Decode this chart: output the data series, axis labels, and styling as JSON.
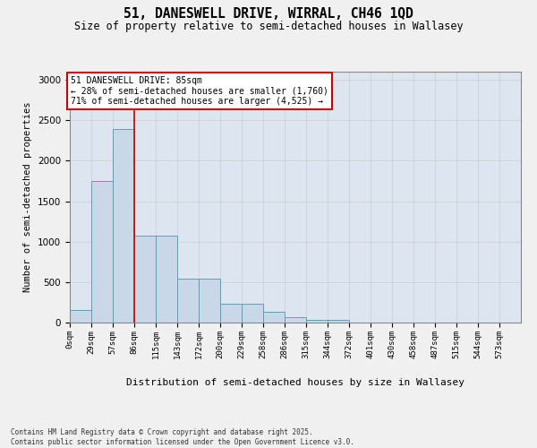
{
  "title": "51, DANESWELL DRIVE, WIRRAL, CH46 1QD",
  "subtitle": "Size of property relative to semi-detached houses in Wallasey",
  "xlabel": "Distribution of semi-detached houses by size in Wallasey",
  "ylabel": "Number of semi-detached properties",
  "footnote": "Contains HM Land Registry data © Crown copyright and database right 2025.\nContains public sector information licensed under the Open Government Licence v3.0.",
  "bin_edges": [
    0,
    28.5,
    57,
    85.5,
    114,
    142.5,
    171,
    199.5,
    228,
    256.5,
    285,
    313.5,
    342,
    370.5,
    399,
    427.5,
    456,
    484.5,
    513,
    541.5,
    570,
    598.5
  ],
  "bar_heights": [
    150,
    1750,
    2390,
    1075,
    1075,
    540,
    540,
    230,
    230,
    130,
    65,
    30,
    30,
    5,
    5,
    2,
    2,
    1,
    1,
    0,
    0
  ],
  "bar_color": "#c8d8e8",
  "bar_edge_color": "#6699bb",
  "property_size": 85,
  "property_line_color": "#cc0000",
  "annotation_text": "51 DANESWELL DRIVE: 85sqm\n← 28% of semi-detached houses are smaller (1,760)\n71% of semi-detached houses are larger (4,525) →",
  "annotation_box_color": "#ffffff",
  "annotation_border_color": "#cc0000",
  "ylim": [
    0,
    3100
  ],
  "yticks": [
    0,
    500,
    1000,
    1500,
    2000,
    2500,
    3000
  ],
  "x_tick_labels": [
    "0sqm",
    "29sqm",
    "57sqm",
    "86sqm",
    "115sqm",
    "143sqm",
    "172sqm",
    "200sqm",
    "229sqm",
    "258sqm",
    "286sqm",
    "315sqm",
    "344sqm",
    "372sqm",
    "401sqm",
    "430sqm",
    "458sqm",
    "487sqm",
    "515sqm",
    "544sqm",
    "573sqm"
  ],
  "grid_color": "#cccccc",
  "background_color": "#dde6f0",
  "fig_background": "#f0f0f0"
}
